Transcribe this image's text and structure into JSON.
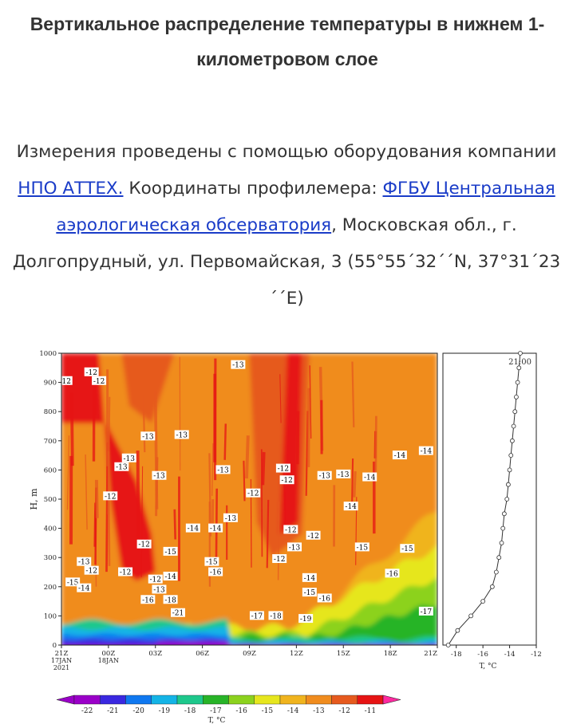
{
  "title": "Вертикальное распределение температуры в нижнем 1-километровом слое",
  "description": {
    "part1": "Измерения проведены с помощью оборудования компании ",
    "link1": "НПО АТТЕХ.",
    "part2": "  Координаты профилемера: ",
    "link2": "ФГБУ Центральная аэрологическая обсерватория",
    "part3": ", Московская обл., г. Долгопрудный, ул. Первомайская, 3 (55°55´32´´N, 37°31´23´´E)"
  },
  "colors": {
    "link": "#1a3cc8",
    "scale": [
      "#9a00c8",
      "#3a28e0",
      "#0f78f0",
      "#14b4e6",
      "#1ec88c",
      "#28b428",
      "#8cd21e",
      "#e6e61e",
      "#f0b41e",
      "#f08c1e",
      "#e65a1e",
      "#e61414"
    ]
  },
  "chart_data": [
    {
      "type": "heatmap",
      "ylabel": "H, m",
      "ylim": [
        0,
        1000
      ],
      "yticks": [
        "0",
        "100",
        "200",
        "300",
        "400",
        "500",
        "600",
        "700",
        "800",
        "900",
        "1000"
      ],
      "xtick_labels": [
        "21Z",
        "00Z",
        "03Z",
        "06Z",
        "09Z",
        "12Z",
        "15Z",
        "18Z",
        "21Z"
      ],
      "date_labels": [
        {
          "at": "21Z",
          "lines": [
            "17JAN",
            "2021"
          ]
        },
        {
          "at": "00Z",
          "lines": [
            "18JAN"
          ]
        }
      ],
      "contour_labels": [
        {
          "v": "-12",
          "t": 0.1,
          "h": 905
        },
        {
          "v": "-12",
          "t": 0.08,
          "h": 935
        },
        {
          "v": "-12",
          "t": 0.01,
          "h": 905
        },
        {
          "v": "-13",
          "t": 0.47,
          "h": 960
        },
        {
          "v": "-13",
          "t": 0.23,
          "h": 715
        },
        {
          "v": "-13",
          "t": 0.32,
          "h": 720
        },
        {
          "v": "-13",
          "t": 0.18,
          "h": 640
        },
        {
          "v": "-13",
          "t": 0.16,
          "h": 610
        },
        {
          "v": "-13",
          "t": 0.26,
          "h": 580
        },
        {
          "v": "-13",
          "t": 0.43,
          "h": 600
        },
        {
          "v": "-12",
          "t": 0.13,
          "h": 510
        },
        {
          "v": "-12",
          "t": 0.51,
          "h": 520
        },
        {
          "v": "-12",
          "t": 0.59,
          "h": 605
        },
        {
          "v": "-12",
          "t": 0.6,
          "h": 565
        },
        {
          "v": "-13",
          "t": 0.7,
          "h": 580
        },
        {
          "v": "-13",
          "t": 0.75,
          "h": 585
        },
        {
          "v": "-14",
          "t": 0.82,
          "h": 575
        },
        {
          "v": "-14",
          "t": 0.9,
          "h": 650
        },
        {
          "v": "-14",
          "t": 0.97,
          "h": 665
        },
        {
          "v": "-14",
          "t": 0.77,
          "h": 475
        },
        {
          "v": "-13",
          "t": 0.45,
          "h": 435
        },
        {
          "v": "-14",
          "t": 0.41,
          "h": 400
        },
        {
          "v": "-14",
          "t": 0.35,
          "h": 400
        },
        {
          "v": "-12",
          "t": 0.61,
          "h": 395
        },
        {
          "v": "-12",
          "t": 0.67,
          "h": 375
        },
        {
          "v": "-13",
          "t": 0.62,
          "h": 335
        },
        {
          "v": "-12",
          "t": 0.58,
          "h": 295
        },
        {
          "v": "-12",
          "t": 0.22,
          "h": 345
        },
        {
          "v": "-15",
          "t": 0.29,
          "h": 320
        },
        {
          "v": "-15",
          "t": 0.4,
          "h": 285
        },
        {
          "v": "-16",
          "t": 0.41,
          "h": 250
        },
        {
          "v": "-15",
          "t": 0.8,
          "h": 335
        },
        {
          "v": "-15",
          "t": 0.92,
          "h": 330
        },
        {
          "v": "-16",
          "t": 0.88,
          "h": 245
        },
        {
          "v": "-13",
          "t": 0.06,
          "h": 285
        },
        {
          "v": "-12",
          "t": 0.08,
          "h": 255
        },
        {
          "v": "-12",
          "t": 0.17,
          "h": 250
        },
        {
          "v": "-12",
          "t": 0.25,
          "h": 225
        },
        {
          "v": "-14",
          "t": 0.29,
          "h": 235
        },
        {
          "v": "-15",
          "t": 0.03,
          "h": 215
        },
        {
          "v": "-14",
          "t": 0.06,
          "h": 195
        },
        {
          "v": "-13",
          "t": 0.26,
          "h": 190
        },
        {
          "v": "-16",
          "t": 0.23,
          "h": 155
        },
        {
          "v": "-18",
          "t": 0.29,
          "h": 155
        },
        {
          "v": "-21",
          "t": 0.31,
          "h": 110
        },
        {
          "v": "-14",
          "t": 0.66,
          "h": 230
        },
        {
          "v": "-15",
          "t": 0.66,
          "h": 180
        },
        {
          "v": "-16",
          "t": 0.7,
          "h": 160
        },
        {
          "v": "-17",
          "t": 0.52,
          "h": 100
        },
        {
          "v": "-18",
          "t": 0.57,
          "h": 100
        },
        {
          "v": "-19",
          "t": 0.65,
          "h": 90
        },
        {
          "v": "-17",
          "t": 0.97,
          "h": 115
        }
      ]
    },
    {
      "type": "line",
      "title": "21:00",
      "xlabel": "T, °C",
      "xlim": [
        -19,
        -12
      ],
      "xticks": [
        "-18",
        "-16",
        "-14",
        "-12"
      ],
      "ylim": [
        0,
        1000
      ],
      "x": [
        -18.6,
        -17.9,
        -16.9,
        -16.0,
        -15.3,
        -15.0,
        -14.8,
        -14.6,
        -14.5,
        -14.4,
        -14.2,
        -14.1,
        -14.0,
        -13.9,
        -13.8,
        -13.7,
        -13.6,
        -13.5,
        -13.4,
        -13.3,
        -13.2
      ],
      "y": [
        0,
        50,
        100,
        150,
        200,
        250,
        300,
        350,
        400,
        450,
        500,
        550,
        600,
        650,
        700,
        750,
        800,
        850,
        900,
        950,
        1000
      ]
    },
    {
      "type": "colorbar",
      "label": "T, °C",
      "ticks": [
        "-22",
        "-21",
        "-20",
        "-19",
        "-18",
        "-17",
        "-16",
        "-15",
        "-14",
        "-13",
        "-12",
        "-11"
      ]
    }
  ]
}
